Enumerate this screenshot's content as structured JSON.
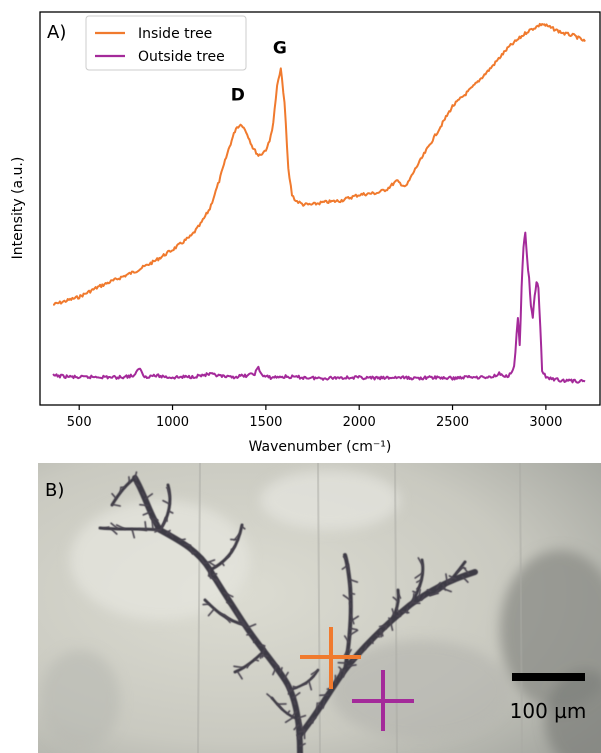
{
  "panel_a_label": "A)",
  "panel_b_label": "B)",
  "colors": {
    "inside": "#f07a2e",
    "outside": "#a42a9a",
    "axis": "#000000"
  },
  "chart_data": {
    "type": "line",
    "title": "",
    "xlabel": "Wavenumber (cm⁻¹)",
    "ylabel": "Intensity (a.u.)",
    "xlim": [
      290,
      3290
    ],
    "ylim": [
      0,
      1
    ],
    "xticks": [
      500,
      1000,
      1500,
      2000,
      2500,
      3000
    ],
    "xtick_labels": [
      "500",
      "1000",
      "1500",
      "2000",
      "2500",
      "3000"
    ],
    "yticks": [],
    "grid": false,
    "legend_position": "top-left",
    "annotations": [
      {
        "text": "D",
        "x": 1350,
        "y": 0.775
      },
      {
        "text": "G",
        "x": 1575,
        "y": 0.895
      }
    ],
    "series": [
      {
        "name": "Inside tree",
        "color": "#f07a2e",
        "x": [
          360,
          500,
          600,
          700,
          800,
          900,
          1000,
          1100,
          1150,
          1200,
          1250,
          1300,
          1340,
          1370,
          1400,
          1430,
          1460,
          1480,
          1500,
          1520,
          1540,
          1560,
          1580,
          1600,
          1620,
          1640,
          1660,
          1680,
          1700,
          1720,
          1750,
          1800,
          1900,
          2000,
          2100,
          2150,
          2200,
          2250,
          2300,
          2400,
          2500,
          2600,
          2700,
          2800,
          2900,
          2980,
          3050,
          3100,
          3150,
          3210
        ],
        "y": [
          0.255,
          0.275,
          0.3,
          0.32,
          0.34,
          0.365,
          0.395,
          0.43,
          0.46,
          0.5,
          0.57,
          0.65,
          0.705,
          0.715,
          0.69,
          0.655,
          0.635,
          0.64,
          0.65,
          0.67,
          0.72,
          0.81,
          0.855,
          0.77,
          0.6,
          0.535,
          0.52,
          0.515,
          0.51,
          0.51,
          0.51,
          0.515,
          0.52,
          0.535,
          0.54,
          0.55,
          0.57,
          0.555,
          0.6,
          0.68,
          0.76,
          0.805,
          0.855,
          0.91,
          0.95,
          0.97,
          0.955,
          0.945,
          0.94,
          0.925
        ]
      },
      {
        "name": "Outside tree",
        "color": "#a42a9a",
        "x": [
          360,
          500,
          600,
          700,
          800,
          820,
          850,
          900,
          1000,
          1100,
          1200,
          1300,
          1400,
          1440,
          1460,
          1480,
          1520,
          1600,
          1700,
          1800,
          1900,
          2000,
          2100,
          2200,
          2300,
          2400,
          2500,
          2600,
          2700,
          2750,
          2800,
          2830,
          2850,
          2860,
          2870,
          2880,
          2890,
          2900,
          2910,
          2920,
          2930,
          2940,
          2950,
          2960,
          2970,
          2980,
          3000,
          3050,
          3100,
          3210
        ],
        "y": [
          0.075,
          0.07,
          0.072,
          0.07,
          0.075,
          0.095,
          0.072,
          0.075,
          0.07,
          0.072,
          0.078,
          0.07,
          0.075,
          0.08,
          0.095,
          0.075,
          0.07,
          0.072,
          0.07,
          0.068,
          0.07,
          0.07,
          0.068,
          0.07,
          0.068,
          0.07,
          0.068,
          0.072,
          0.07,
          0.08,
          0.072,
          0.095,
          0.22,
          0.15,
          0.3,
          0.4,
          0.44,
          0.37,
          0.32,
          0.25,
          0.22,
          0.28,
          0.31,
          0.3,
          0.2,
          0.09,
          0.07,
          0.065,
          0.062,
          0.06
        ]
      }
    ]
  },
  "micrograph": {
    "scalebar_label": "100 µm",
    "markers": [
      {
        "name": "inside",
        "color": "#f07a2e"
      },
      {
        "name": "outside",
        "color": "#a42a9a"
      }
    ]
  }
}
